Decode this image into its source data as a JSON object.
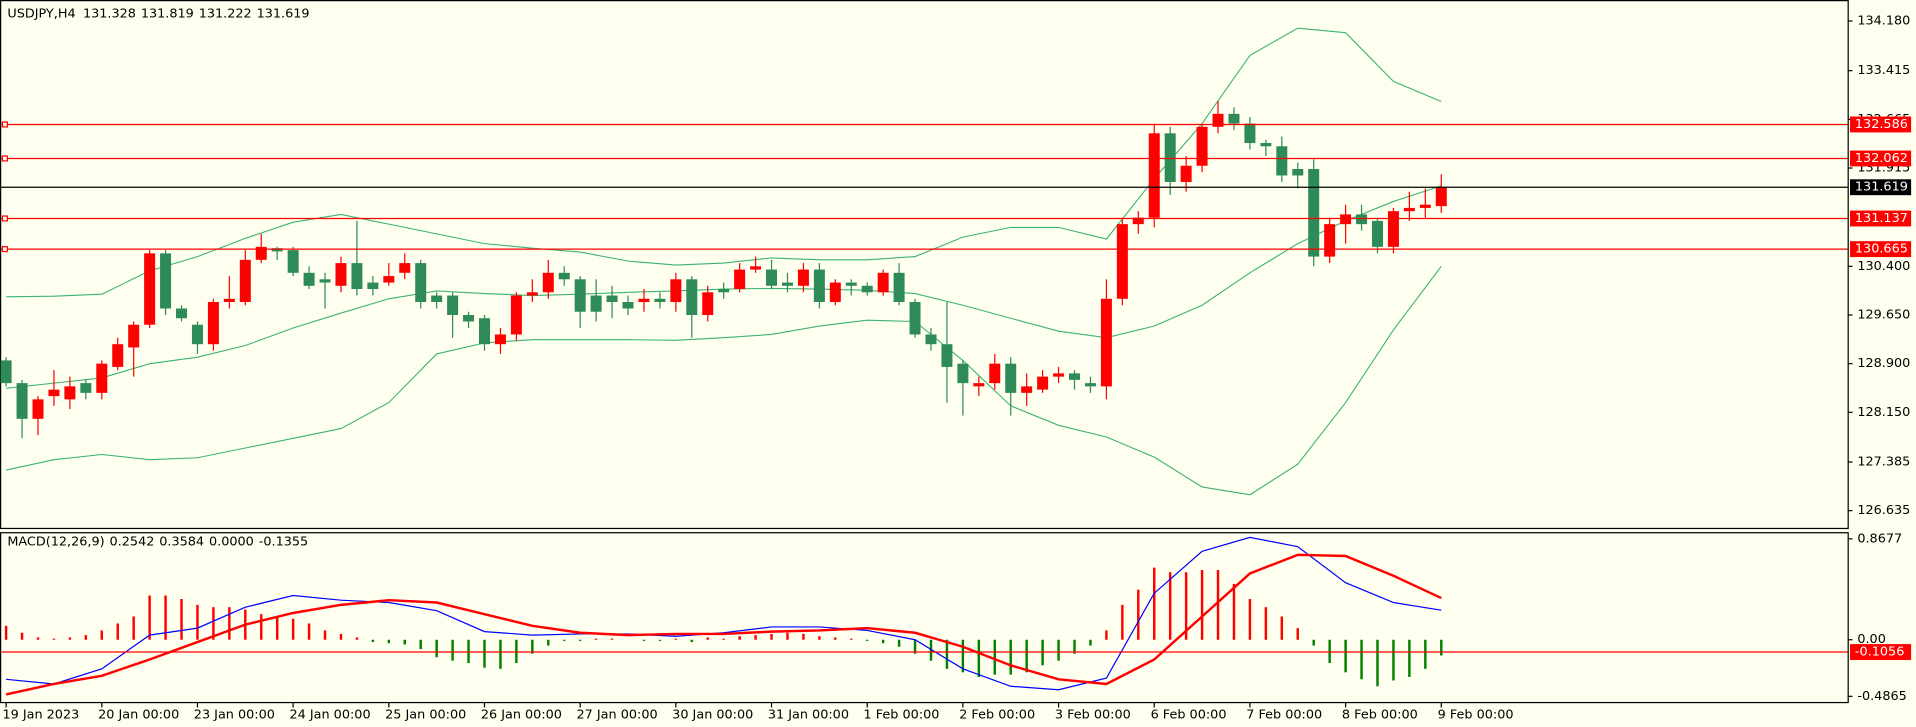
{
  "chart_data": [
    {
      "type": "candlestick",
      "symbol": "USDJPY,H4",
      "categories": [
        "19 Jan 2023",
        null,
        null,
        null,
        null,
        null,
        "20 Jan 00:00",
        null,
        null,
        null,
        null,
        null,
        "23 Jan 00:00",
        null,
        null,
        null,
        null,
        null,
        "24 Jan 00:00",
        null,
        null,
        null,
        null,
        null,
        "25 Jan 00:00",
        null,
        null,
        null,
        null,
        null,
        "26 Jan 00:00",
        null,
        null,
        null,
        null,
        null,
        "27 Jan 00:00",
        null,
        null,
        null,
        null,
        null,
        "30 Jan 00:00",
        null,
        null,
        null,
        null,
        null,
        "31 Jan 00:00",
        null,
        null,
        null,
        null,
        null,
        "1 Feb 00:00",
        null,
        null,
        null,
        null,
        null,
        "2 Feb 00:00",
        null,
        null,
        null,
        null,
        null,
        "3 Feb 00:00",
        null,
        null,
        null,
        null,
        null,
        "6 Feb 00:00",
        null,
        null,
        null,
        null,
        null,
        "7 Feb 00:00",
        null,
        null,
        null,
        null,
        null,
        "8 Feb 00:00",
        null,
        null,
        null,
        null,
        null,
        "9 Feb 00:00"
      ],
      "open": [
        128.95,
        128.6,
        128.05,
        128.4,
        128.35,
        128.6,
        128.45,
        128.85,
        129.15,
        129.5,
        130.6,
        129.75,
        129.5,
        129.2,
        129.85,
        129.85,
        130.5,
        130.68,
        130.65,
        130.3,
        130.2,
        130.1,
        130.45,
        130.15,
        130.15,
        130.3,
        130.45,
        129.95,
        129.95,
        129.65,
        129.6,
        129.2,
        129.35,
        129.95,
        130.0,
        130.3,
        130.2,
        129.95,
        129.95,
        129.85,
        129.85,
        129.9,
        129.85,
        130.2,
        129.65,
        130.05,
        130.05,
        130.35,
        130.35,
        130.15,
        130.1,
        130.35,
        129.85,
        130.15,
        130.1,
        130.0,
        130.3,
        129.85,
        129.35,
        129.2,
        128.9,
        128.55,
        128.6,
        128.9,
        128.45,
        128.5,
        128.7,
        128.75,
        128.6,
        128.55,
        129.9,
        131.05,
        131.15,
        132.45,
        131.7,
        131.95,
        132.55,
        132.75,
        132.6,
        132.3,
        132.25,
        131.9,
        131.9,
        130.55,
        131.05,
        131.2,
        131.1,
        130.7,
        131.25,
        131.3,
        131.328
      ],
      "high": [
        129.0,
        128.65,
        128.4,
        128.8,
        128.7,
        128.65,
        128.95,
        129.3,
        129.55,
        130.65,
        130.65,
        129.8,
        129.55,
        129.9,
        130.25,
        130.65,
        130.9,
        130.7,
        130.7,
        130.4,
        130.3,
        130.55,
        131.1,
        130.25,
        130.45,
        130.6,
        130.5,
        130.0,
        130.0,
        129.7,
        129.65,
        129.45,
        130.0,
        130.2,
        130.5,
        130.4,
        130.25,
        130.2,
        130.1,
        129.95,
        130.05,
        130.0,
        130.3,
        130.25,
        130.1,
        130.15,
        130.45,
        130.55,
        130.5,
        130.3,
        130.45,
        130.45,
        130.2,
        130.2,
        130.15,
        130.35,
        130.45,
        129.9,
        129.45,
        129.85,
        128.95,
        128.7,
        129.05,
        129.0,
        128.75,
        128.8,
        128.85,
        128.8,
        128.7,
        130.2,
        131.15,
        131.25,
        132.6,
        132.55,
        132.1,
        132.6,
        132.95,
        132.85,
        132.7,
        132.35,
        132.4,
        132.0,
        132.05,
        131.15,
        131.35,
        131.35,
        131.15,
        131.3,
        131.55,
        131.6,
        131.819
      ],
      "low": [
        128.55,
        127.75,
        127.8,
        128.25,
        128.2,
        128.35,
        128.35,
        128.8,
        128.7,
        129.45,
        129.65,
        129.55,
        129.05,
        129.1,
        129.75,
        129.8,
        130.45,
        130.5,
        130.25,
        130.05,
        129.75,
        130.0,
        129.95,
        129.95,
        130.1,
        130.2,
        129.75,
        129.75,
        129.3,
        129.45,
        129.1,
        129.05,
        129.25,
        129.85,
        129.9,
        130.1,
        129.45,
        129.55,
        129.6,
        129.65,
        129.7,
        129.75,
        129.7,
        129.3,
        129.55,
        129.9,
        130.0,
        130.3,
        130.05,
        130.0,
        130.0,
        129.75,
        129.8,
        129.95,
        129.95,
        129.95,
        129.8,
        129.3,
        129.1,
        128.3,
        128.1,
        128.4,
        128.5,
        128.1,
        128.25,
        128.45,
        128.6,
        128.5,
        128.45,
        128.35,
        129.8,
        130.9,
        131.0,
        131.5,
        131.55,
        131.85,
        132.45,
        132.5,
        132.2,
        132.1,
        131.7,
        131.6,
        130.4,
        130.45,
        130.75,
        130.95,
        130.6,
        130.6,
        131.1,
        131.15,
        131.222
      ],
      "close": [
        128.6,
        128.05,
        128.35,
        128.5,
        128.55,
        128.45,
        128.9,
        129.2,
        129.5,
        130.6,
        129.75,
        129.6,
        129.2,
        129.85,
        129.9,
        130.5,
        130.7,
        130.63,
        130.3,
        130.1,
        130.15,
        130.45,
        130.05,
        130.05,
        130.25,
        130.45,
        129.85,
        129.85,
        129.65,
        129.55,
        129.2,
        129.35,
        129.95,
        130.0,
        130.3,
        130.2,
        129.7,
        129.7,
        129.85,
        129.75,
        129.9,
        129.85,
        130.2,
        129.65,
        130.0,
        130.0,
        130.35,
        130.4,
        130.1,
        130.1,
        130.35,
        129.85,
        130.15,
        130.1,
        130.0,
        130.3,
        129.85,
        129.35,
        129.2,
        128.85,
        128.6,
        128.6,
        128.9,
        128.45,
        128.55,
        128.7,
        128.75,
        128.65,
        128.55,
        129.9,
        131.05,
        131.15,
        132.45,
        131.7,
        131.95,
        132.55,
        132.75,
        132.6,
        132.3,
        132.25,
        131.8,
        131.8,
        130.55,
        131.05,
        131.2,
        131.05,
        130.7,
        131.25,
        131.3,
        131.35,
        131.619
      ],
      "up_color": "#ff0000",
      "down_color": "#2e8b57",
      "bands": {
        "color": "#3cb371",
        "x": [
          0,
          3,
          6,
          9,
          12,
          15,
          18,
          21,
          24,
          27,
          30,
          33,
          36,
          39,
          42,
          45,
          48,
          51,
          54,
          57,
          60,
          63,
          66,
          69,
          72,
          75,
          78,
          81,
          84,
          87,
          90
        ],
        "upper": [
          129.93,
          129.94,
          129.97,
          130.33,
          130.55,
          130.83,
          131.08,
          131.2,
          131.05,
          130.9,
          130.75,
          130.68,
          130.62,
          130.48,
          130.42,
          130.45,
          130.53,
          130.5,
          130.5,
          130.55,
          130.85,
          131.0,
          131.0,
          130.82,
          131.75,
          132.6,
          133.65,
          134.07,
          134.0,
          133.25,
          132.94
        ],
        "middle": [
          128.52,
          128.6,
          128.68,
          128.9,
          129.0,
          129.18,
          129.45,
          129.68,
          129.9,
          130.02,
          129.98,
          129.95,
          129.97,
          130.0,
          130.02,
          130.05,
          130.06,
          130.05,
          130.03,
          129.98,
          129.8,
          129.6,
          129.4,
          129.3,
          129.48,
          129.8,
          130.3,
          130.75,
          131.1,
          131.4,
          131.64
        ],
        "lower": [
          127.26,
          127.42,
          127.5,
          127.42,
          127.45,
          127.6,
          127.75,
          127.9,
          128.3,
          129.05,
          129.22,
          129.27,
          129.27,
          129.27,
          129.26,
          129.3,
          129.35,
          129.48,
          129.57,
          129.55,
          128.95,
          128.25,
          127.95,
          127.77,
          127.46,
          127.0,
          126.88,
          127.35,
          128.3,
          129.42,
          130.4
        ]
      },
      "levels": [
        132.586,
        132.062,
        131.137,
        130.665
      ],
      "level_color": "#ff0000",
      "ylim": [
        126.37,
        134.41
      ],
      "yticks": [
        {
          "value": 134.18,
          "label": "134.180"
        },
        {
          "value": 133.415,
          "label": "133.415"
        },
        {
          "value": 132.665,
          "label": "132.665"
        },
        {
          "value": 131.915,
          "label": "131.915"
        },
        {
          "value": 130.4,
          "label": "130.400"
        },
        {
          "value": 129.65,
          "label": "129.650"
        },
        {
          "value": 128.9,
          "label": "128.900"
        },
        {
          "value": 128.15,
          "label": "128.150"
        },
        {
          "value": 127.385,
          "label": "127.385"
        },
        {
          "value": 126.635,
          "label": "126.635"
        }
      ]
    },
    {
      "type": "macd",
      "title": "MACD(12,26,9)",
      "readout": {
        "value": 0,
        "label": "0.0000"
      },
      "histogram": [
        0.12,
        0.06,
        0.02,
        0.01,
        0.02,
        0.04,
        0.08,
        0.14,
        0.2,
        0.38,
        0.38,
        0.35,
        0.3,
        0.28,
        0.28,
        0.26,
        0.22,
        0.2,
        0.18,
        0.14,
        0.08,
        0.05,
        0.02,
        -0.02,
        -0.03,
        -0.04,
        -0.08,
        -0.15,
        -0.18,
        -0.2,
        -0.24,
        -0.25,
        -0.2,
        -0.12,
        -0.05,
        -0.01,
        -0.01,
        0.01,
        0.01,
        0,
        -0.01,
        -0.01,
        0.01,
        -0.02,
        0.02,
        0.01,
        0.03,
        0.04,
        0.05,
        0.06,
        0.05,
        0.03,
        0.02,
        0.01,
        -0.01,
        -0.03,
        -0.06,
        -0.12,
        -0.18,
        -0.25,
        -0.28,
        -0.32,
        -0.3,
        -0.3,
        -0.28,
        -0.22,
        -0.18,
        -0.12,
        -0.05,
        0.08,
        0.3,
        0.43,
        0.62,
        0.58,
        0.58,
        0.6,
        0.6,
        0.48,
        0.35,
        0.28,
        0.2,
        0.1,
        -0.05,
        -0.2,
        -0.28,
        -0.34,
        -0.4,
        -0.35,
        -0.32,
        -0.25,
        -0.1355
      ],
      "up_color": "#ff0000",
      "down_color": "#008000",
      "main": {
        "color": "#0000ff",
        "x": [
          0,
          3,
          6,
          9,
          12,
          15,
          18,
          21,
          24,
          27,
          30,
          33,
          36,
          39,
          42,
          45,
          48,
          51,
          54,
          57,
          60,
          63,
          66,
          69,
          72,
          75,
          78,
          81,
          84,
          87,
          90
        ],
        "values": [
          -0.34,
          -0.38,
          -0.25,
          0.04,
          0.1,
          0.28,
          0.38,
          0.34,
          0.32,
          0.25,
          0.07,
          0.04,
          0.05,
          0.05,
          0.03,
          0.06,
          0.11,
          0.11,
          0.08,
          0,
          -0.25,
          -0.4,
          -0.43,
          -0.33,
          0.4,
          0.76,
          0.88,
          0.8,
          0.49,
          0.32,
          0.2542
        ]
      },
      "signal": {
        "color": "#ff0000",
        "x": [
          0,
          3,
          6,
          9,
          12,
          15,
          18,
          21,
          24,
          27,
          30,
          33,
          36,
          39,
          42,
          45,
          48,
          51,
          54,
          57,
          60,
          63,
          66,
          69,
          72,
          75,
          78,
          81,
          84,
          87,
          90
        ],
        "values": [
          -0.47,
          -0.38,
          -0.31,
          -0.17,
          -0.02,
          0.13,
          0.23,
          0.3,
          0.34,
          0.32,
          0.22,
          0.12,
          0.06,
          0.04,
          0.05,
          0.05,
          0.07,
          0.08,
          0.1,
          0.06,
          -0.06,
          -0.22,
          -0.34,
          -0.38,
          -0.17,
          0.2,
          0.57,
          0.73,
          0.72,
          0.55,
          0.3584
        ]
      },
      "level": -0.1056,
      "level_color": "#ff0000",
      "ylim": [
        -0.54,
        0.92
      ],
      "yticks": [
        0.8677,
        {
          "value": 0,
          "label": "0.00"
        },
        -0.4865
      ]
    }
  ]
}
